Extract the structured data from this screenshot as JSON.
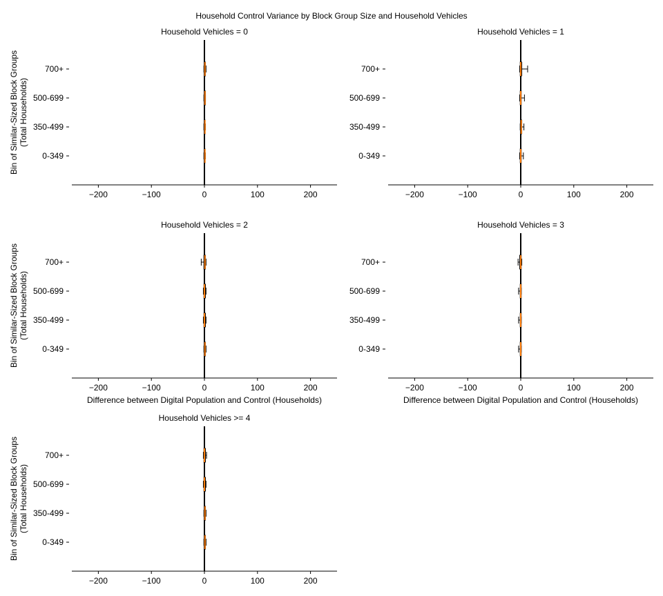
{
  "chart_data": {
    "type": "boxplot",
    "title": "Household Control Variance by Block Group Size and Household Vehicles",
    "ylabel": "Bin of Similar-Sized Block Groups\n(Total Households)",
    "xlabel": "Difference between Digital Population and Control (Households)",
    "xlim": [
      -250,
      250
    ],
    "xticks": [
      -200,
      -100,
      0,
      100,
      200
    ],
    "xtick_labels": [
      "−200",
      "−100",
      "0",
      "100",
      "200"
    ],
    "categories": [
      "700+",
      "500-699",
      "350-499",
      "0-349"
    ],
    "colors": {
      "median": "#ff7f0e",
      "box": "#000000",
      "zero_line": "#000000"
    },
    "panels": [
      {
        "title": "Household Vehicles = 0",
        "show_xlabel": false,
        "boxes": [
          [
            -1,
            0,
            1,
            2,
            3
          ],
          [
            -1,
            0,
            1,
            2,
            2
          ],
          [
            -1,
            0,
            1,
            1,
            2
          ],
          [
            -1,
            0,
            1,
            1,
            2
          ]
        ]
      },
      {
        "title": "Household Vehicles = 1",
        "show_xlabel": false,
        "boxes": [
          [
            -2,
            -1,
            0,
            2,
            13
          ],
          [
            -2,
            -1,
            0,
            1,
            7
          ],
          [
            -1,
            0,
            1,
            2,
            6
          ],
          [
            -2,
            -1,
            0,
            1,
            5
          ]
        ]
      },
      {
        "title": "Household Vehicles = 2",
        "show_xlabel": true,
        "boxes": [
          [
            -6,
            -1,
            1,
            2,
            3
          ],
          [
            -2,
            -1,
            0,
            2,
            3
          ],
          [
            -2,
            -1,
            0,
            2,
            3
          ],
          [
            -1,
            0,
            1,
            2,
            3
          ]
        ]
      },
      {
        "title": "Household Vehicles = 3",
        "show_xlabel": true,
        "boxes": [
          [
            -5,
            -2,
            0,
            1,
            2
          ],
          [
            -4,
            -1,
            0,
            1,
            1
          ],
          [
            -4,
            -1,
            0,
            1,
            1
          ],
          [
            -4,
            -1,
            0,
            1,
            1
          ]
        ]
      },
      {
        "title": "Household Vehicles >= 4",
        "show_xlabel": false,
        "boxes": [
          [
            -2,
            -1,
            0,
            2,
            4
          ],
          [
            -2,
            -1,
            0,
            2,
            3
          ],
          [
            -1,
            0,
            1,
            2,
            3
          ],
          [
            -1,
            0,
            1,
            2,
            3
          ]
        ]
      }
    ]
  }
}
